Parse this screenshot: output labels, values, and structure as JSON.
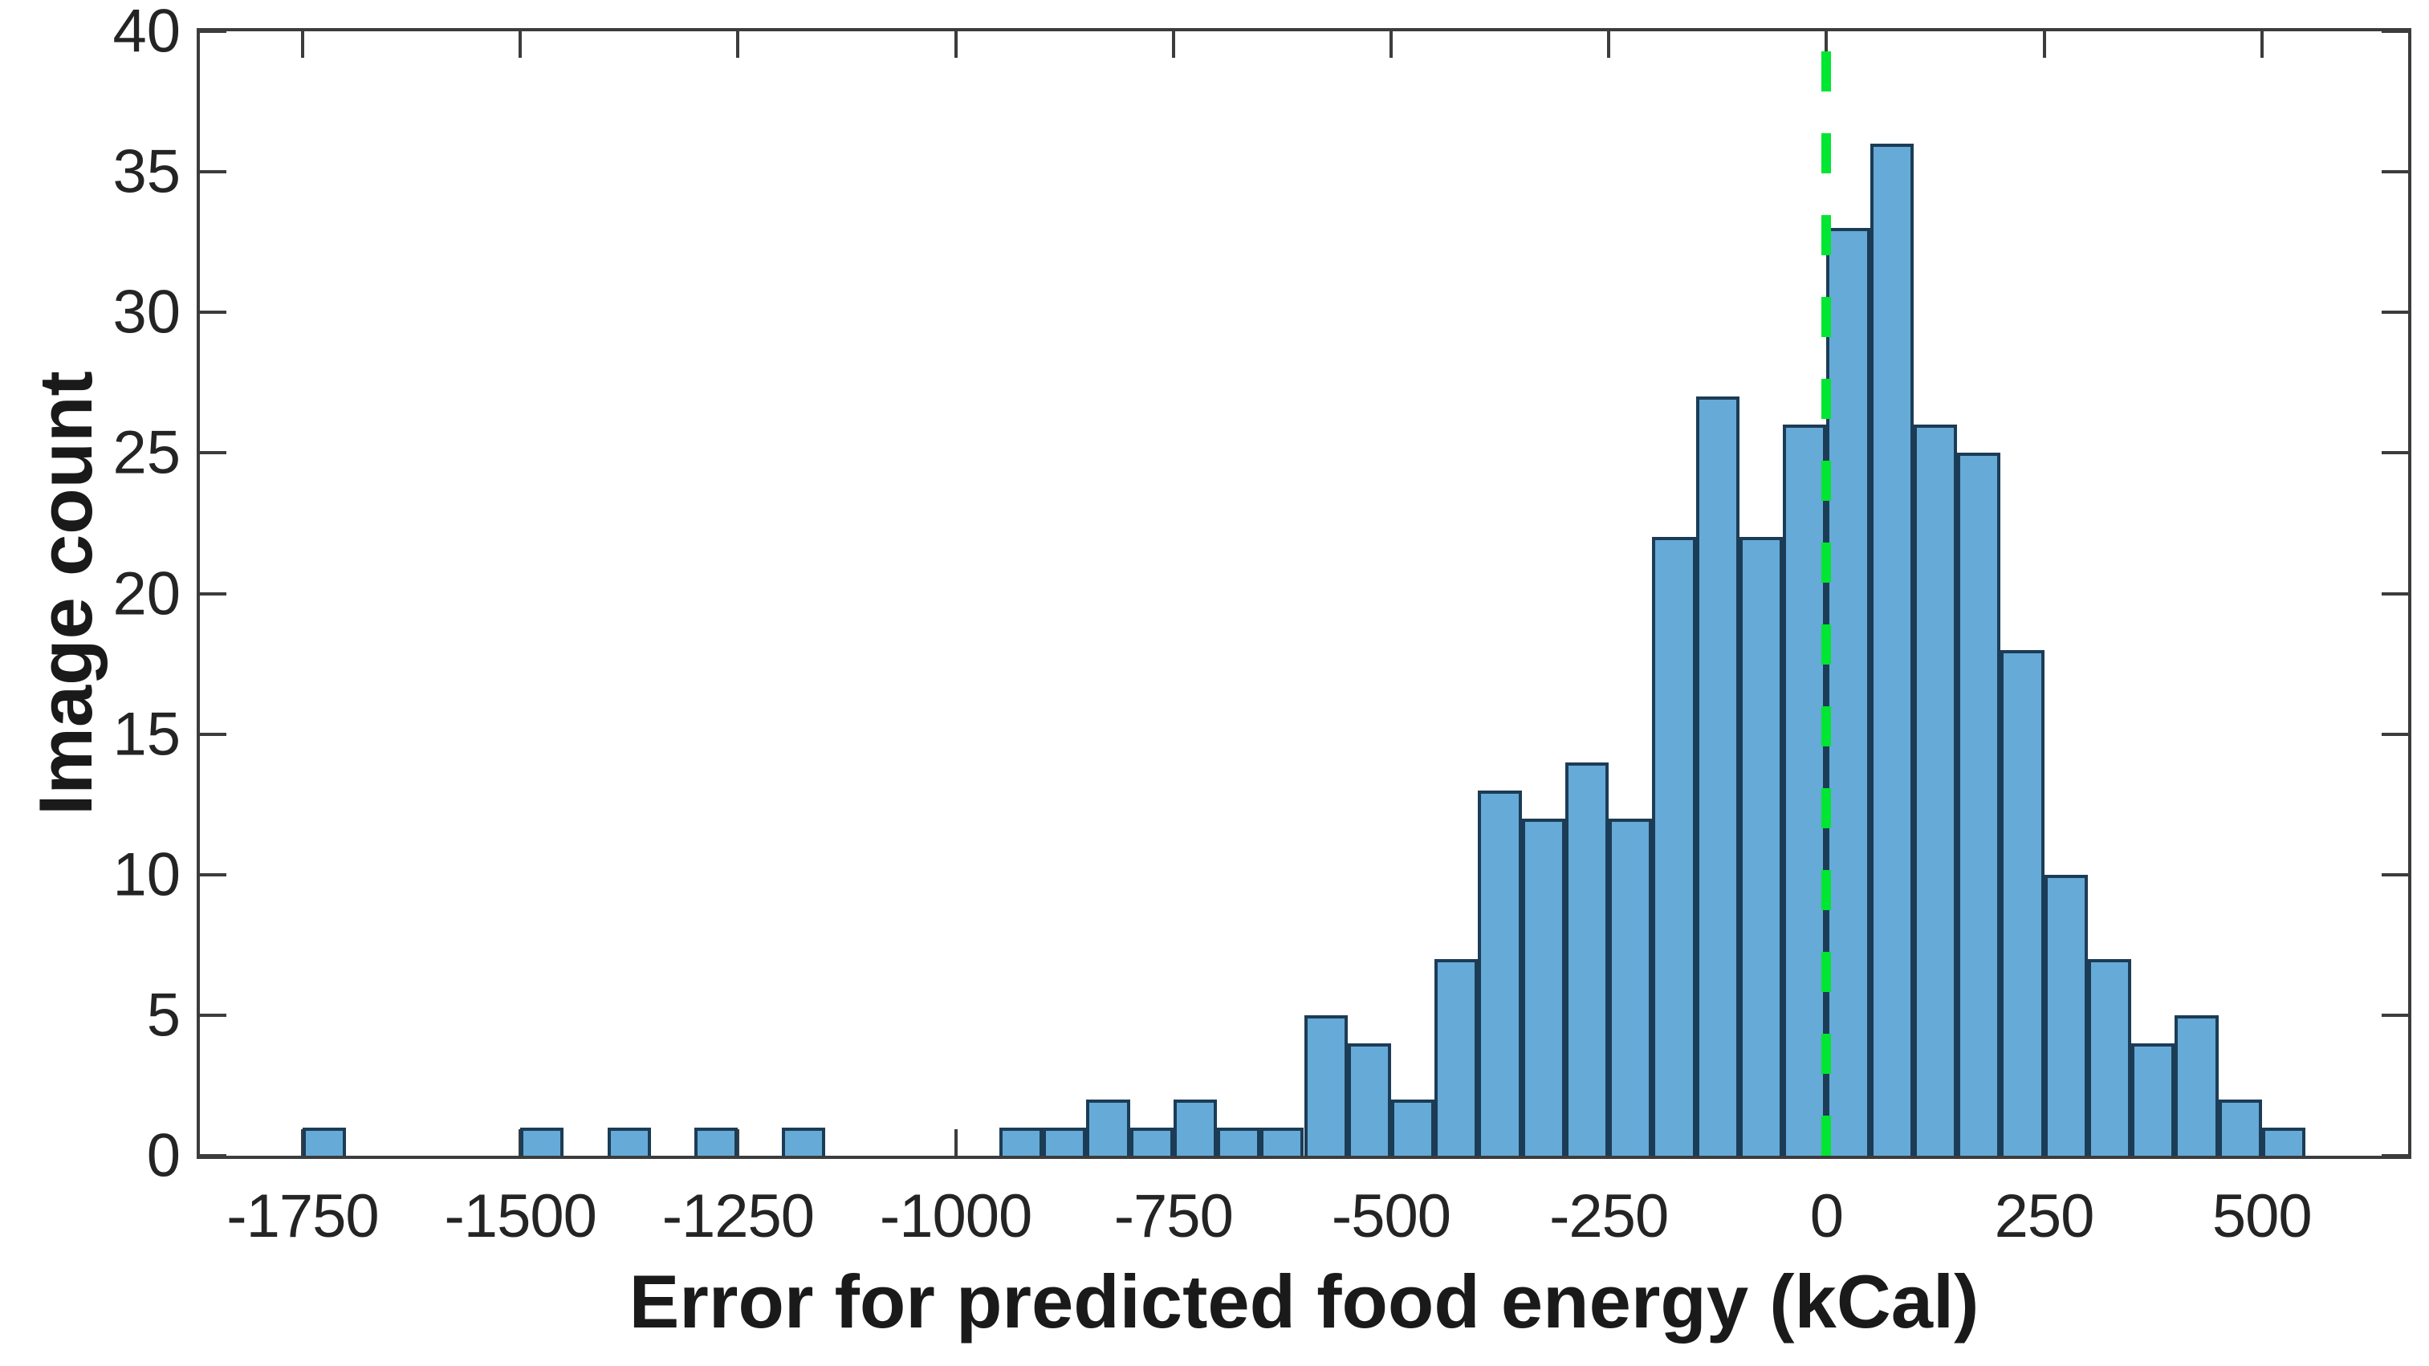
{
  "chart_data": {
    "type": "bar",
    "variant": "histogram",
    "title": "",
    "xlabel": "Error for predicted food energy (kCal)",
    "ylabel": "Image count",
    "xlim": [
      -1868,
      668
    ],
    "ylim": [
      0,
      40
    ],
    "grid": false,
    "legend": null,
    "bin_width": 50,
    "bins": [
      {
        "start": -1750,
        "count": 1
      },
      {
        "start": -1500,
        "count": 1
      },
      {
        "start": -1400,
        "count": 1
      },
      {
        "start": -1300,
        "count": 1
      },
      {
        "start": -1200,
        "count": 1
      },
      {
        "start": -950,
        "count": 1
      },
      {
        "start": -900,
        "count": 1
      },
      {
        "start": -850,
        "count": 2
      },
      {
        "start": -800,
        "count": 1
      },
      {
        "start": -750,
        "count": 2
      },
      {
        "start": -700,
        "count": 1
      },
      {
        "start": -650,
        "count": 1
      },
      {
        "start": -600,
        "count": 5
      },
      {
        "start": -550,
        "count": 4
      },
      {
        "start": -500,
        "count": 2
      },
      {
        "start": -450,
        "count": 7
      },
      {
        "start": -400,
        "count": 13
      },
      {
        "start": -350,
        "count": 12
      },
      {
        "start": -300,
        "count": 14
      },
      {
        "start": -250,
        "count": 12
      },
      {
        "start": -200,
        "count": 22
      },
      {
        "start": -150,
        "count": 27
      },
      {
        "start": -100,
        "count": 22
      },
      {
        "start": -50,
        "count": 26
      },
      {
        "start": 0,
        "count": 33
      },
      {
        "start": 50,
        "count": 36
      },
      {
        "start": 100,
        "count": 26
      },
      {
        "start": 150,
        "count": 25
      },
      {
        "start": 200,
        "count": 18
      },
      {
        "start": 250,
        "count": 10
      },
      {
        "start": 300,
        "count": 7
      },
      {
        "start": 350,
        "count": 4
      },
      {
        "start": 400,
        "count": 5
      },
      {
        "start": 450,
        "count": 2
      },
      {
        "start": 500,
        "count": 1
      }
    ],
    "x_ticks": [
      -1750,
      -1500,
      -1250,
      -1000,
      -750,
      -500,
      -250,
      0,
      250,
      500
    ],
    "y_ticks": [
      0,
      5,
      10,
      15,
      20,
      25,
      30,
      35,
      40
    ],
    "reference_line": {
      "x": 0,
      "style": "dashed",
      "color": "#00e632"
    },
    "colors": {
      "bar_fill": "#66aad7",
      "bar_edge": "#1c3c56",
      "axis": "#3c3c3c",
      "tick_label": "#242424",
      "title_text": "#1a1a1a",
      "zero_line": "#00e632",
      "background": "#ffffff"
    }
  }
}
